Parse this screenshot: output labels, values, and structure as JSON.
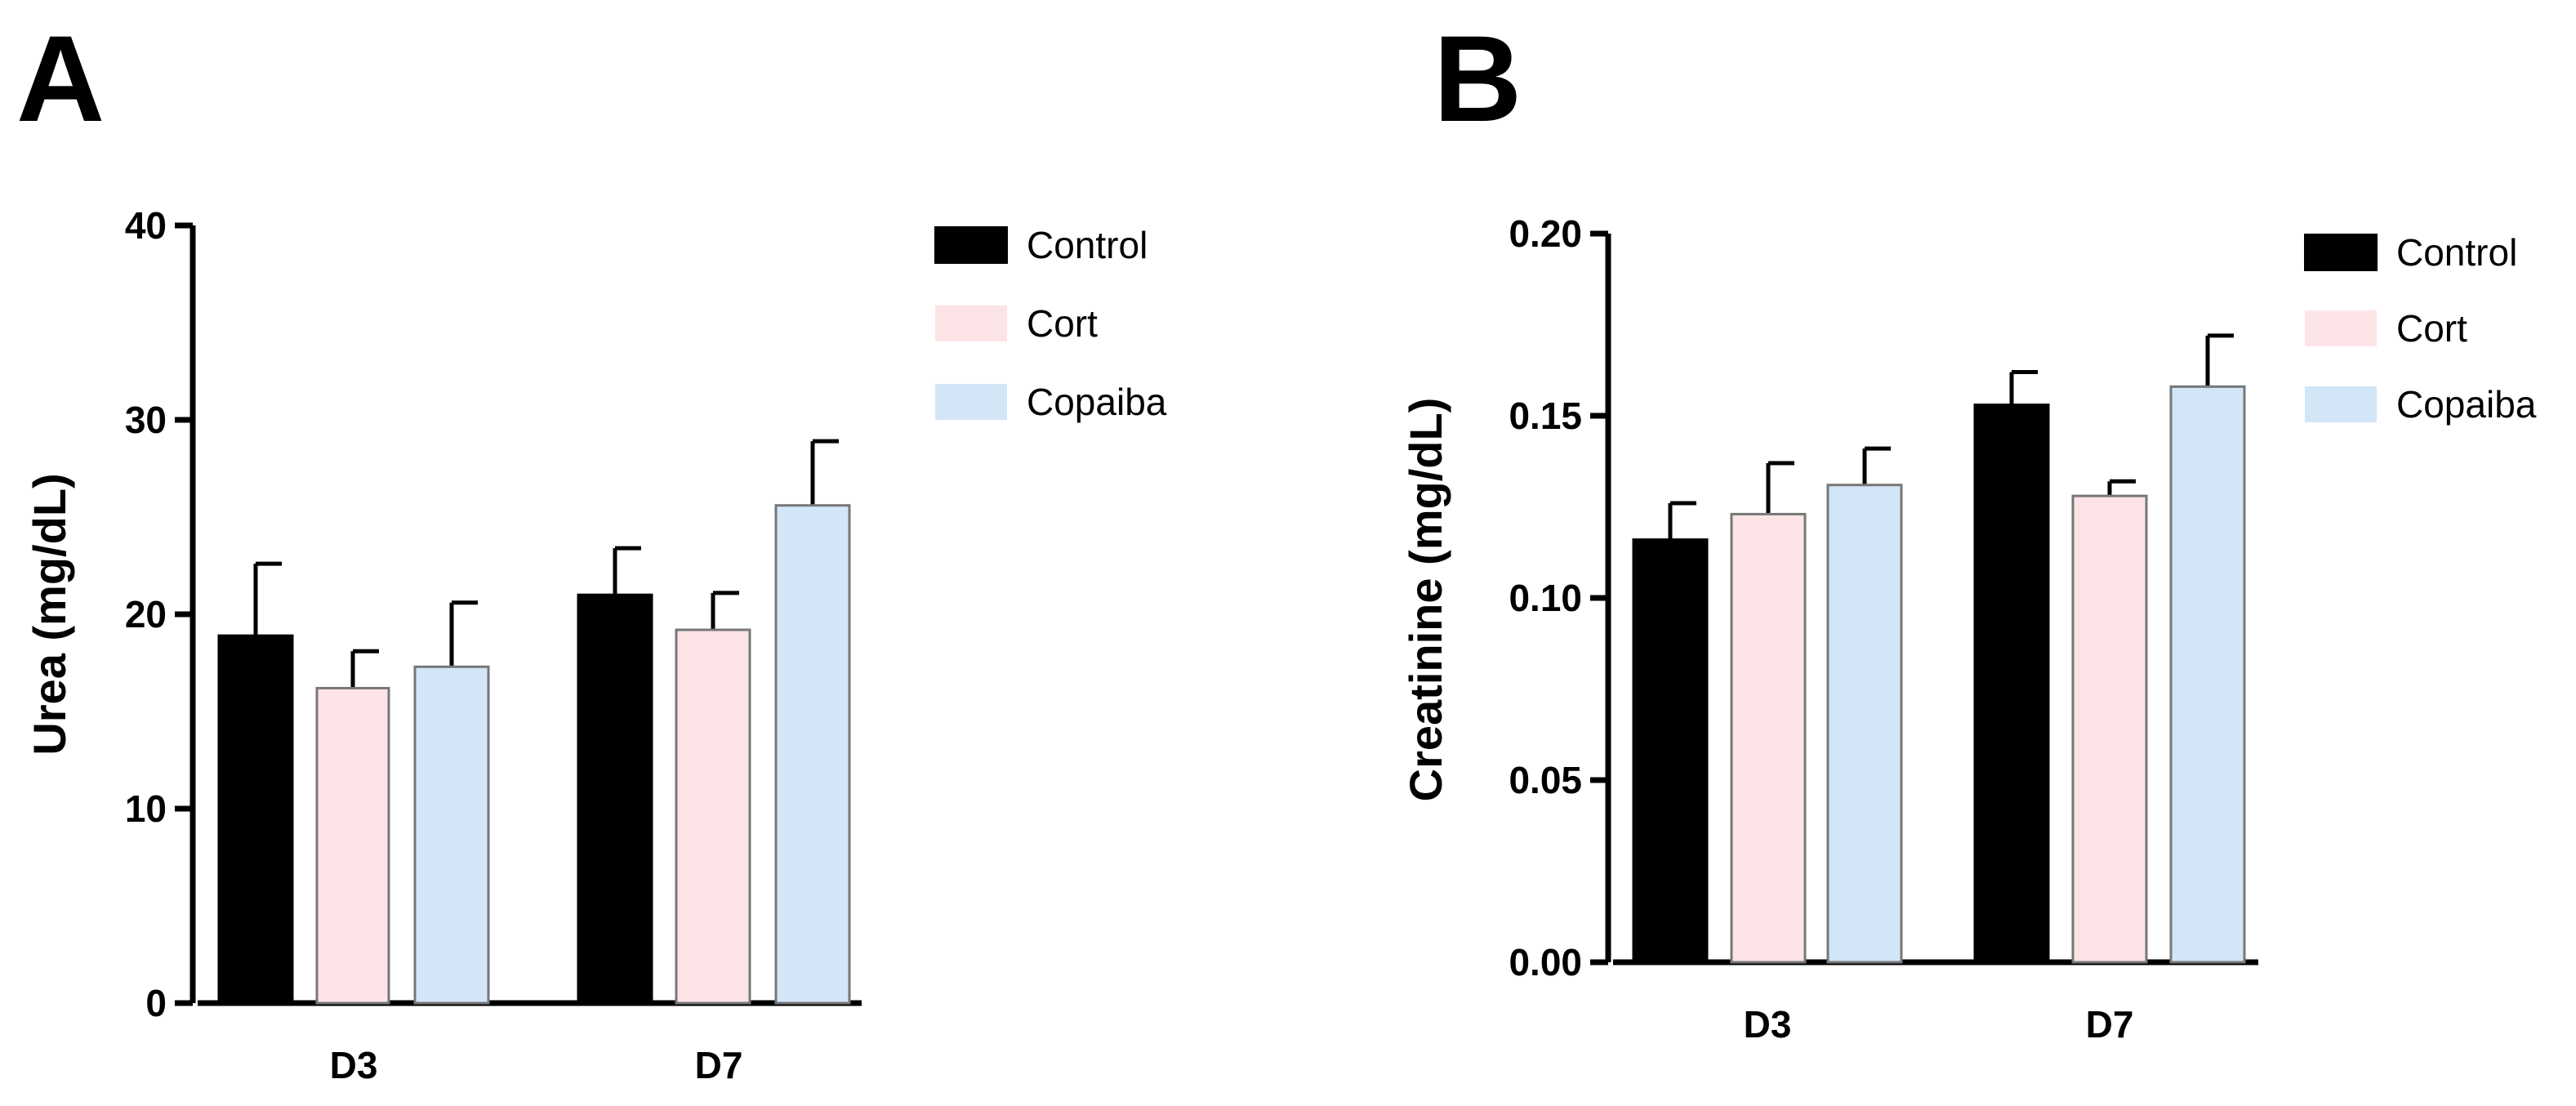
{
  "chart_data": [
    {
      "panel": "A",
      "type": "bar",
      "categories": [
        "D3",
        "D7"
      ],
      "ylabel": "Urea (mg/dL)",
      "xlabel": "",
      "ylim": [
        0,
        40
      ],
      "yticks": [
        "0",
        "10",
        "20",
        "30",
        "40"
      ],
      "legend_position": "right",
      "series": [
        {
          "name": "Control",
          "color": "#000000",
          "values": [
            18.9,
            21.0
          ],
          "errors": [
            3.7,
            2.4
          ]
        },
        {
          "name": "Cort",
          "color": "#fce4e6",
          "values": [
            16.2,
            19.2
          ],
          "errors": [
            1.9,
            1.9
          ]
        },
        {
          "name": "Copaiba",
          "color": "#d3e6f8",
          "values": [
            17.3,
            25.6
          ],
          "errors": [
            3.3,
            3.3
          ]
        }
      ]
    },
    {
      "panel": "B",
      "type": "bar",
      "categories": [
        "D3",
        "D7"
      ],
      "ylabel": "Creatinine (mg/dL)",
      "xlabel": "",
      "ylim": [
        0,
        0.2
      ],
      "yticks": [
        "0.00",
        "0.05",
        "0.10",
        "0.15",
        "0.20"
      ],
      "legend_position": "right",
      "series": [
        {
          "name": "Control",
          "color": "#000000",
          "values": [
            0.116,
            0.153
          ],
          "errors": [
            0.01,
            0.009
          ]
        },
        {
          "name": "Cort",
          "color": "#fce4e6",
          "values": [
            0.123,
            0.128
          ],
          "errors": [
            0.014,
            0.004
          ]
        },
        {
          "name": "Copaiba",
          "color": "#d3e6f8",
          "values": [
            0.131,
            0.158
          ],
          "errors": [
            0.01,
            0.014
          ]
        }
      ]
    }
  ]
}
